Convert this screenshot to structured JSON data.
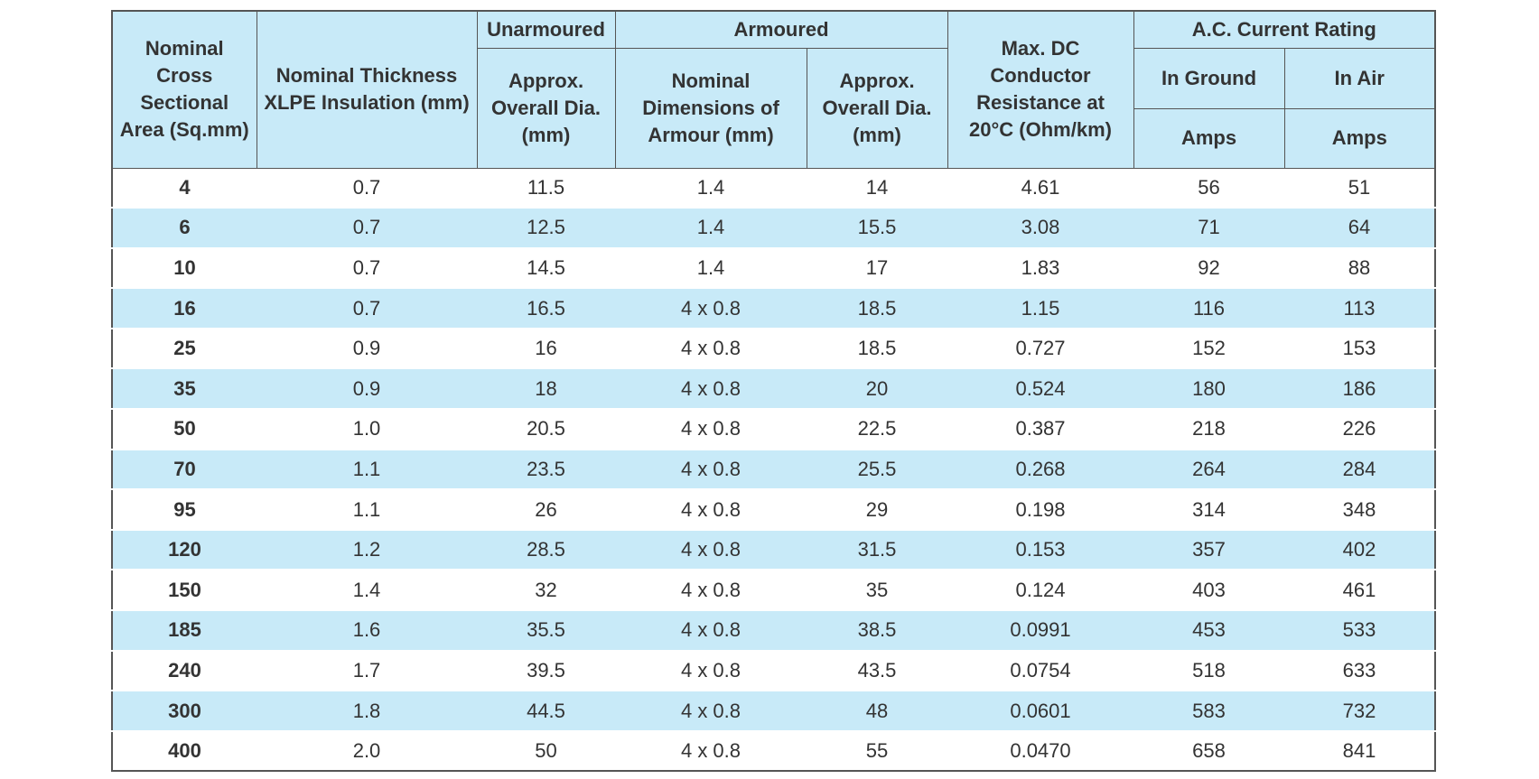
{
  "table": {
    "header": {
      "area": "Nominal Cross Sectional Area (Sq.mm)",
      "thickness": "Nominal Thickness XLPE Insulation (mm)",
      "unarmoured": "Unarmoured",
      "armoured": "Armoured",
      "resistance": "Max. DC Conductor Resistance at 20°C (Ohm/km)",
      "current": "A.C. Current Rating",
      "unarmoured_dia": "Approx. Overall Dia. (mm)",
      "armour_dim": "Nominal Dimensions of Armour (mm)",
      "armoured_dia": "Approx. Overall Dia. (mm)",
      "in_ground": "In Ground",
      "in_air": "In Air",
      "ground_unit": "Amps",
      "air_unit": "Amps"
    },
    "rows": [
      [
        "4",
        "0.7",
        "11.5",
        "1.4",
        "14",
        "4.61",
        "56",
        "51"
      ],
      [
        "6",
        "0.7",
        "12.5",
        "1.4",
        "15.5",
        "3.08",
        "71",
        "64"
      ],
      [
        "10",
        "0.7",
        "14.5",
        "1.4",
        "17",
        "1.83",
        "92",
        "88"
      ],
      [
        "16",
        "0.7",
        "16.5",
        "4 x 0.8",
        "18.5",
        "1.15",
        "116",
        "113"
      ],
      [
        "25",
        "0.9",
        "16",
        "4 x 0.8",
        "18.5",
        "0.727",
        "152",
        "153"
      ],
      [
        "35",
        "0.9",
        "18",
        "4 x 0.8",
        "20",
        "0.524",
        "180",
        "186"
      ],
      [
        "50",
        "1.0",
        "20.5",
        "4 x 0.8",
        "22.5",
        "0.387",
        "218",
        "226"
      ],
      [
        "70",
        "1.1",
        "23.5",
        "4 x 0.8",
        "25.5",
        "0.268",
        "264",
        "284"
      ],
      [
        "95",
        "1.1",
        "26",
        "4 x 0.8",
        "29",
        "0.198",
        "314",
        "348"
      ],
      [
        "120",
        "1.2",
        "28.5",
        "4 x 0.8",
        "31.5",
        "0.153",
        "357",
        "402"
      ],
      [
        "150",
        "1.4",
        "32",
        "4 x 0.8",
        "35",
        "0.124",
        "403",
        "461"
      ],
      [
        "185",
        "1.6",
        "35.5",
        "4 x 0.8",
        "38.5",
        "0.0991",
        "453",
        "533"
      ],
      [
        "240",
        "1.7",
        "39.5",
        "4 x 0.8",
        "43.5",
        "0.0754",
        "518",
        "633"
      ],
      [
        "300",
        "1.8",
        "44.5",
        "4 x 0.8",
        "48",
        "0.0601",
        "583",
        "732"
      ],
      [
        "400",
        "2.0",
        "50",
        "4 x 0.8",
        "55",
        "0.0470",
        "658",
        "841"
      ]
    ]
  }
}
